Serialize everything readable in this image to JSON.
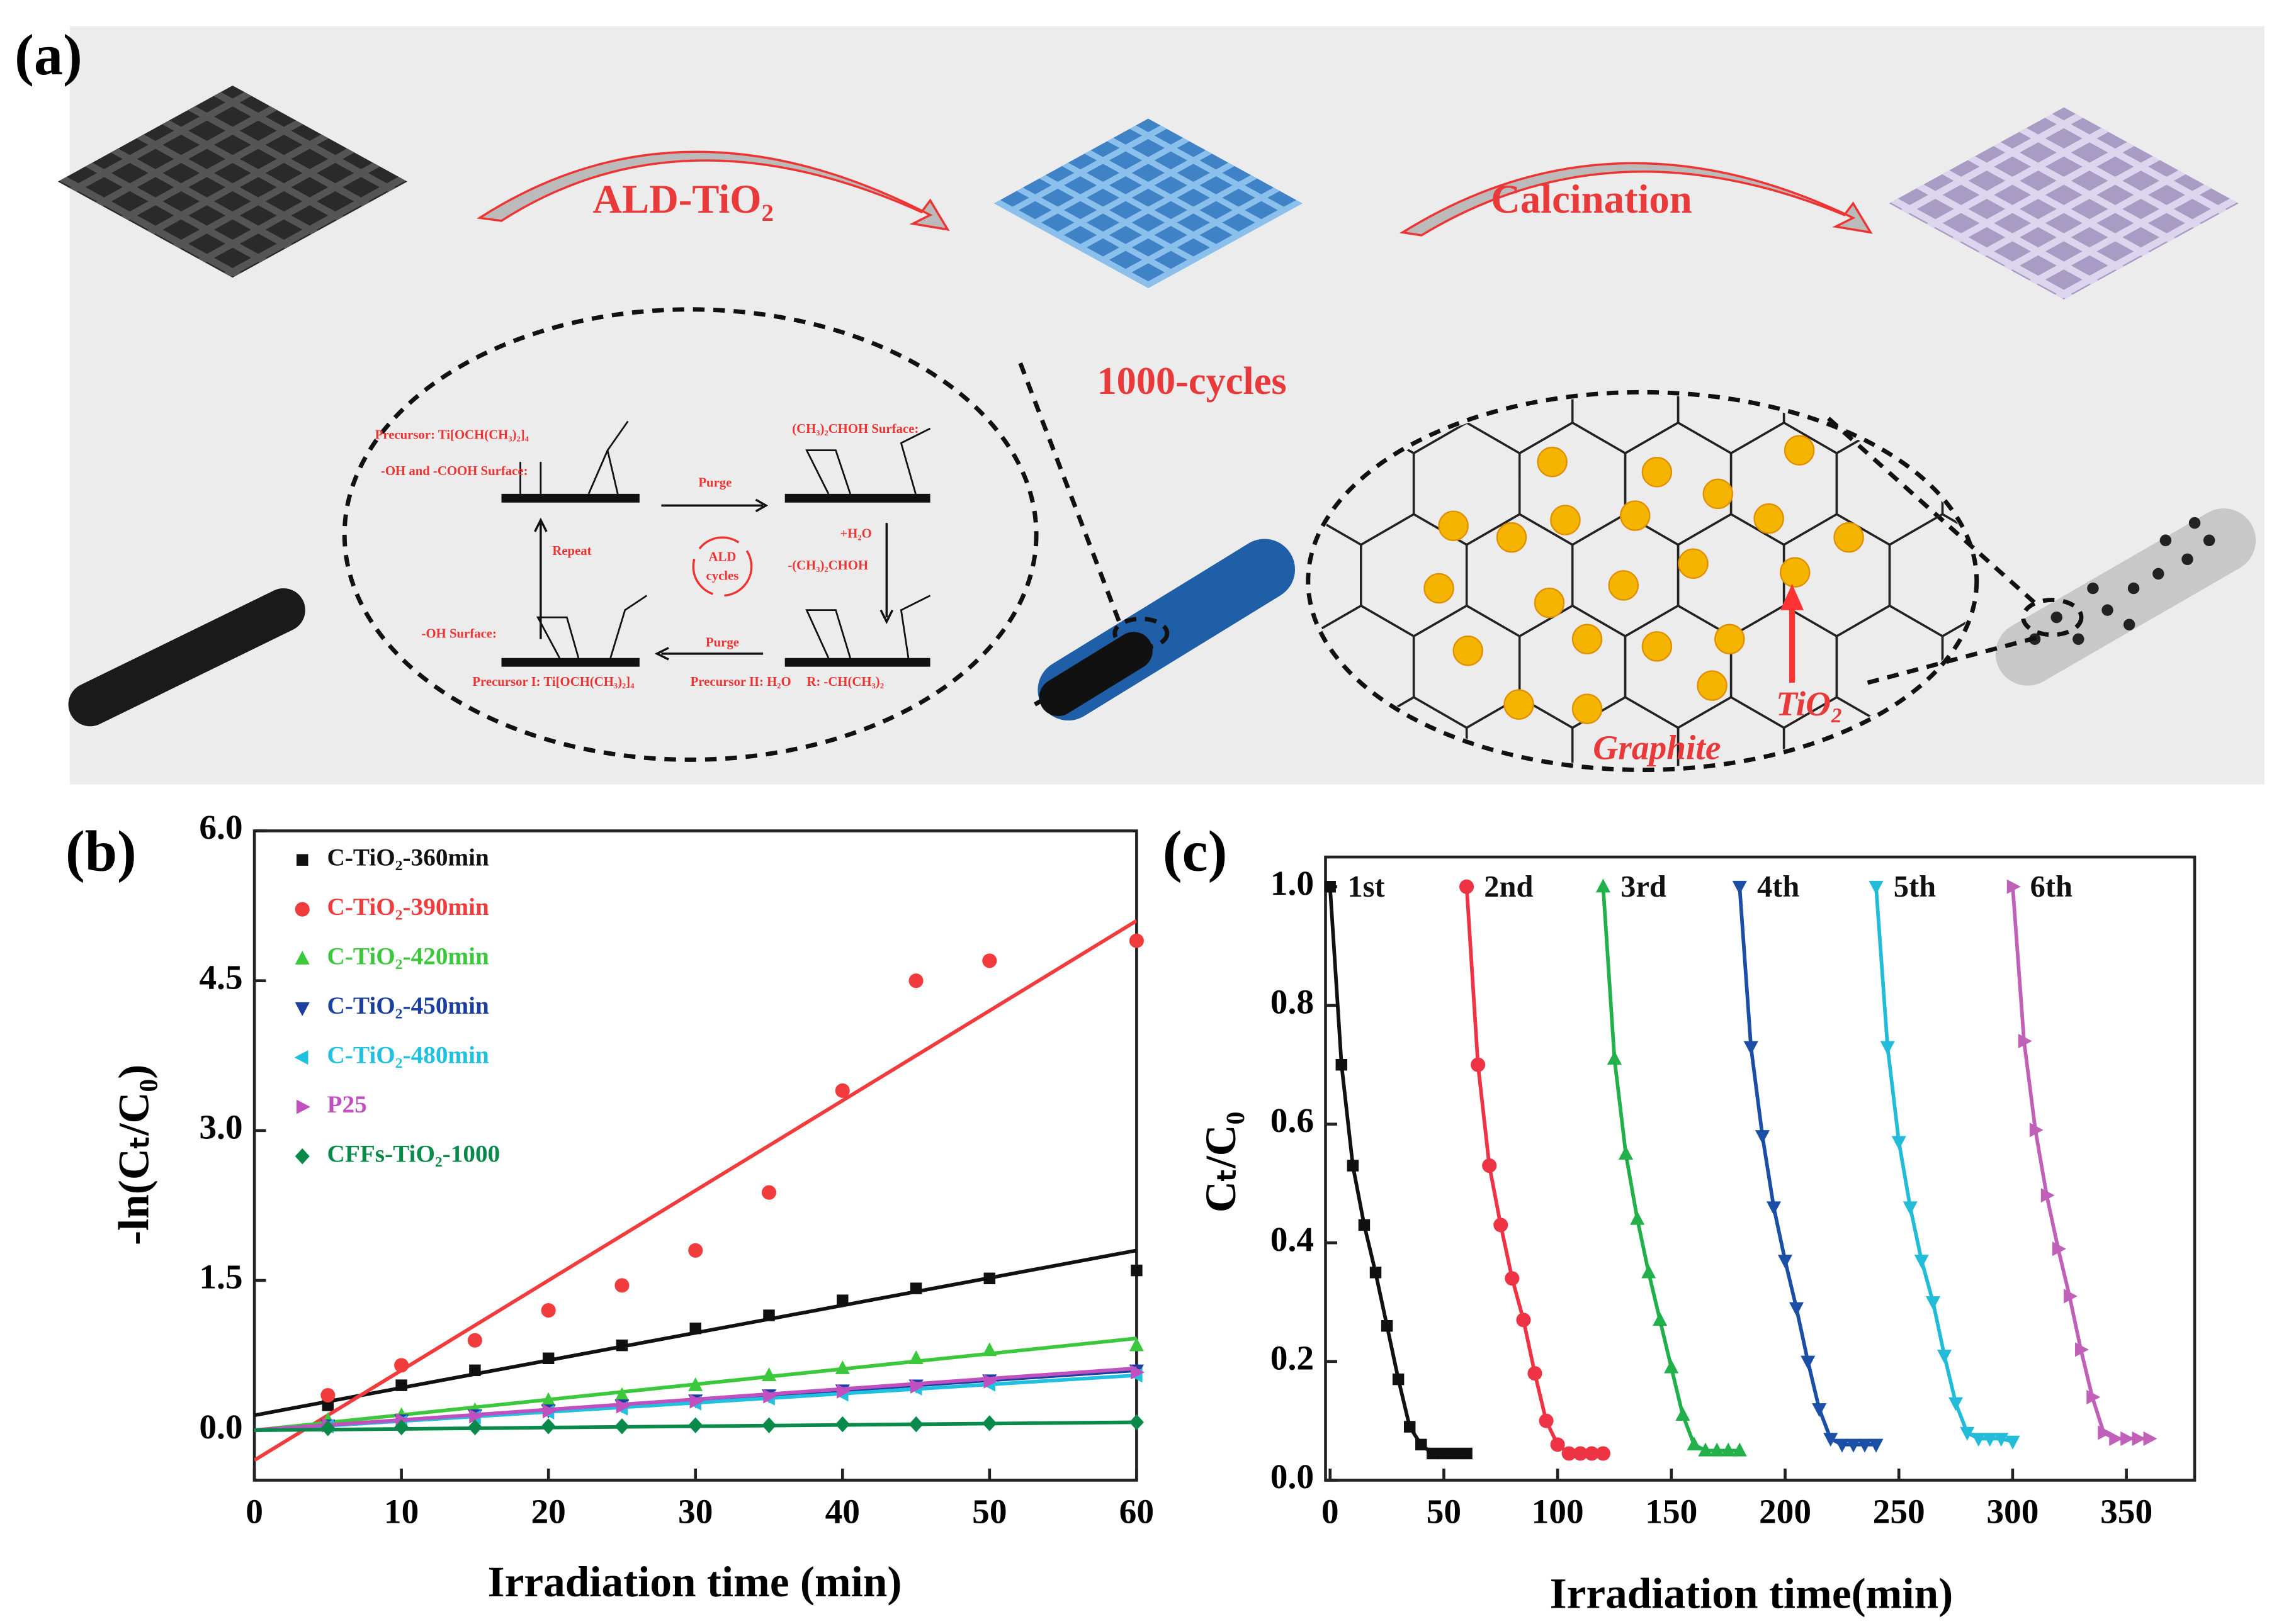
{
  "panel_a": {
    "label": "(a)",
    "step1": "ALD-TiO₂",
    "step2": "Calcination",
    "cycles": "1000-cycles",
    "scheme": [
      "Precursor: Ti[OCH(CH₃)₂]₄",
      "-OH and -COOH Surface:",
      "(CH₃)₂CHOH Surface:",
      "Purge",
      "+H₂O",
      "-(CH₃)₂CHOH",
      "Repeat",
      "ALD",
      "cycles",
      "Purge",
      "-OH Surface:",
      "Precursor I: Ti[OCH(CH₃)₂]₄",
      "Precursor II: H₂O",
      "R: -CH(CH₃)₂"
    ],
    "nanoparticle_label": "TiO₂",
    "substrate_label": "Graphite"
  },
  "chart_data": [
    {
      "type": "scatter",
      "label": "(b)",
      "x_label": "Irradiation time (min)",
      "y_label": "-ln(Cₜ/C₀)",
      "x": [
        0,
        5,
        10,
        15,
        20,
        25,
        30,
        35,
        40,
        45,
        50,
        55,
        60
      ],
      "xlim": [
        0,
        60
      ],
      "xticks": [
        0,
        10,
        20,
        30,
        40,
        50,
        60
      ],
      "ylim": [
        -0.5,
        6.0
      ],
      "yticks": [
        {
          "value": 0,
          "label": "0.0"
        },
        {
          "value": 1.5,
          "label": "1.5"
        },
        {
          "value": 3,
          "label": "3.0"
        },
        {
          "value": 4.5,
          "label": "4.5"
        },
        {
          "value": 6,
          "label": "6.0"
        }
      ],
      "series": [
        {
          "name": "C-TiO₂-360min",
          "color": "#111111",
          "marker": "square",
          "values": [
            null,
            0.25,
            0.45,
            0.6,
            0.72,
            0.85,
            1.02,
            1.15,
            1.3,
            1.42,
            1.52,
            null,
            1.6
          ],
          "fit": [
            0.15,
            1.8
          ]
        },
        {
          "name": "C-TiO₂-390min",
          "color": "#f03c3c",
          "marker": "circle",
          "values": [
            null,
            0.35,
            0.65,
            0.9,
            1.2,
            1.45,
            1.8,
            2.38,
            3.4,
            4.5,
            4.7,
            null,
            4.9
          ],
          "fit": [
            -0.3,
            5.1
          ]
        },
        {
          "name": "C-TiO₂-420min",
          "color": "#3cc83c",
          "marker": "triangle-up",
          "values": [
            null,
            0.1,
            0.15,
            0.2,
            0.3,
            0.35,
            0.45,
            0.55,
            0.62,
            0.72,
            0.8,
            null,
            0.85
          ],
          "fit": [
            0.0,
            0.92
          ]
        },
        {
          "name": "C-TiO₂-450min",
          "color": "#1a3fa0",
          "marker": "triangle-down",
          "values": [
            null,
            0.05,
            0.1,
            0.15,
            0.2,
            0.25,
            0.3,
            0.35,
            0.4,
            0.45,
            0.5,
            null,
            0.6
          ],
          "fit": [
            0.0,
            0.6
          ]
        },
        {
          "name": "C-TiO₂-480min",
          "color": "#20c0e0",
          "marker": "triangle-left",
          "values": [
            null,
            0.04,
            0.08,
            0.13,
            0.18,
            0.22,
            0.27,
            0.32,
            0.36,
            0.42,
            0.46,
            null,
            0.55
          ],
          "fit": [
            0.0,
            0.55
          ]
        },
        {
          "name": "P25",
          "color": "#c050c0",
          "marker": "triangle-right",
          "values": [
            null,
            0.05,
            0.1,
            0.14,
            0.19,
            0.24,
            0.29,
            0.34,
            0.39,
            0.44,
            0.49,
            null,
            0.58
          ],
          "fit": [
            0.0,
            0.62
          ]
        },
        {
          "name": "CFFs-TiO₂-1000",
          "color": "#0a8a4a",
          "marker": "diamond",
          "values": [
            null,
            0.02,
            0.03,
            0.03,
            0.04,
            0.04,
            0.05,
            0.05,
            0.06,
            0.06,
            0.07,
            null,
            0.08
          ],
          "fit": [
            0.0,
            0.08
          ]
        }
      ]
    },
    {
      "type": "line",
      "label": "(c)",
      "x_label": "Irradiation time(min)",
      "y_label": "Cₜ/C₀",
      "xlim": [
        -2,
        380
      ],
      "xticks": [
        0,
        50,
        100,
        150,
        200,
        250,
        300,
        350
      ],
      "ylim": [
        0,
        1.05
      ],
      "yticks": [
        {
          "value": 0,
          "label": "0.0"
        },
        {
          "value": 0.2,
          "label": "0.2"
        },
        {
          "value": 0.4,
          "label": "0.4"
        },
        {
          "value": 0.6,
          "label": "0.6"
        },
        {
          "value": 0.8,
          "label": "0.8"
        },
        {
          "value": 1,
          "label": "1.0"
        }
      ],
      "series": [
        {
          "name": "1st",
          "color": "#111111",
          "marker": "square",
          "x": [
            0,
            5,
            10,
            15,
            20,
            25,
            30,
            35,
            40,
            45,
            50,
            55,
            60
          ],
          "values": [
            1.0,
            0.7,
            0.53,
            0.43,
            0.35,
            0.26,
            0.17,
            0.09,
            0.06,
            0.045,
            0.045,
            0.045,
            0.045
          ]
        },
        {
          "name": "2nd",
          "color": "#ee3344",
          "marker": "circle",
          "x": [
            60,
            65,
            70,
            75,
            80,
            85,
            90,
            95,
            100,
            105,
            110,
            115,
            120
          ],
          "values": [
            1.0,
            0.7,
            0.53,
            0.43,
            0.34,
            0.27,
            0.18,
            0.1,
            0.06,
            0.045,
            0.045,
            0.045,
            0.045
          ]
        },
        {
          "name": "3rd",
          "color": "#22b04a",
          "marker": "triangle-up",
          "x": [
            120,
            125,
            130,
            135,
            140,
            145,
            150,
            155,
            160,
            165,
            170,
            175,
            180
          ],
          "values": [
            1.0,
            0.71,
            0.55,
            0.44,
            0.35,
            0.27,
            0.19,
            0.11,
            0.06,
            0.05,
            0.05,
            0.05,
            0.05
          ]
        },
        {
          "name": "4th",
          "color": "#1a4fa5",
          "marker": "triangle-down",
          "x": [
            180,
            185,
            190,
            195,
            200,
            205,
            210,
            215,
            220,
            225,
            230,
            235,
            240
          ],
          "values": [
            1.0,
            0.73,
            0.58,
            0.46,
            0.37,
            0.29,
            0.2,
            0.12,
            0.07,
            0.06,
            0.06,
            0.06,
            0.06
          ]
        },
        {
          "name": "5th",
          "color": "#22bcd8",
          "marker": "triangle-down",
          "x": [
            240,
            245,
            250,
            255,
            260,
            265,
            270,
            275,
            280,
            285,
            290,
            295,
            300
          ],
          "values": [
            1.0,
            0.73,
            0.57,
            0.46,
            0.37,
            0.3,
            0.21,
            0.13,
            0.08,
            0.07,
            0.07,
            0.07,
            0.065
          ]
        },
        {
          "name": "6th",
          "color": "#c060b8",
          "marker": "triangle-right",
          "x": [
            300,
            305,
            310,
            315,
            320,
            325,
            330,
            335,
            340,
            345,
            350,
            355,
            360
          ],
          "values": [
            1.0,
            0.74,
            0.59,
            0.48,
            0.39,
            0.31,
            0.22,
            0.14,
            0.08,
            0.07,
            0.07,
            0.07,
            0.07
          ]
        }
      ]
    }
  ]
}
